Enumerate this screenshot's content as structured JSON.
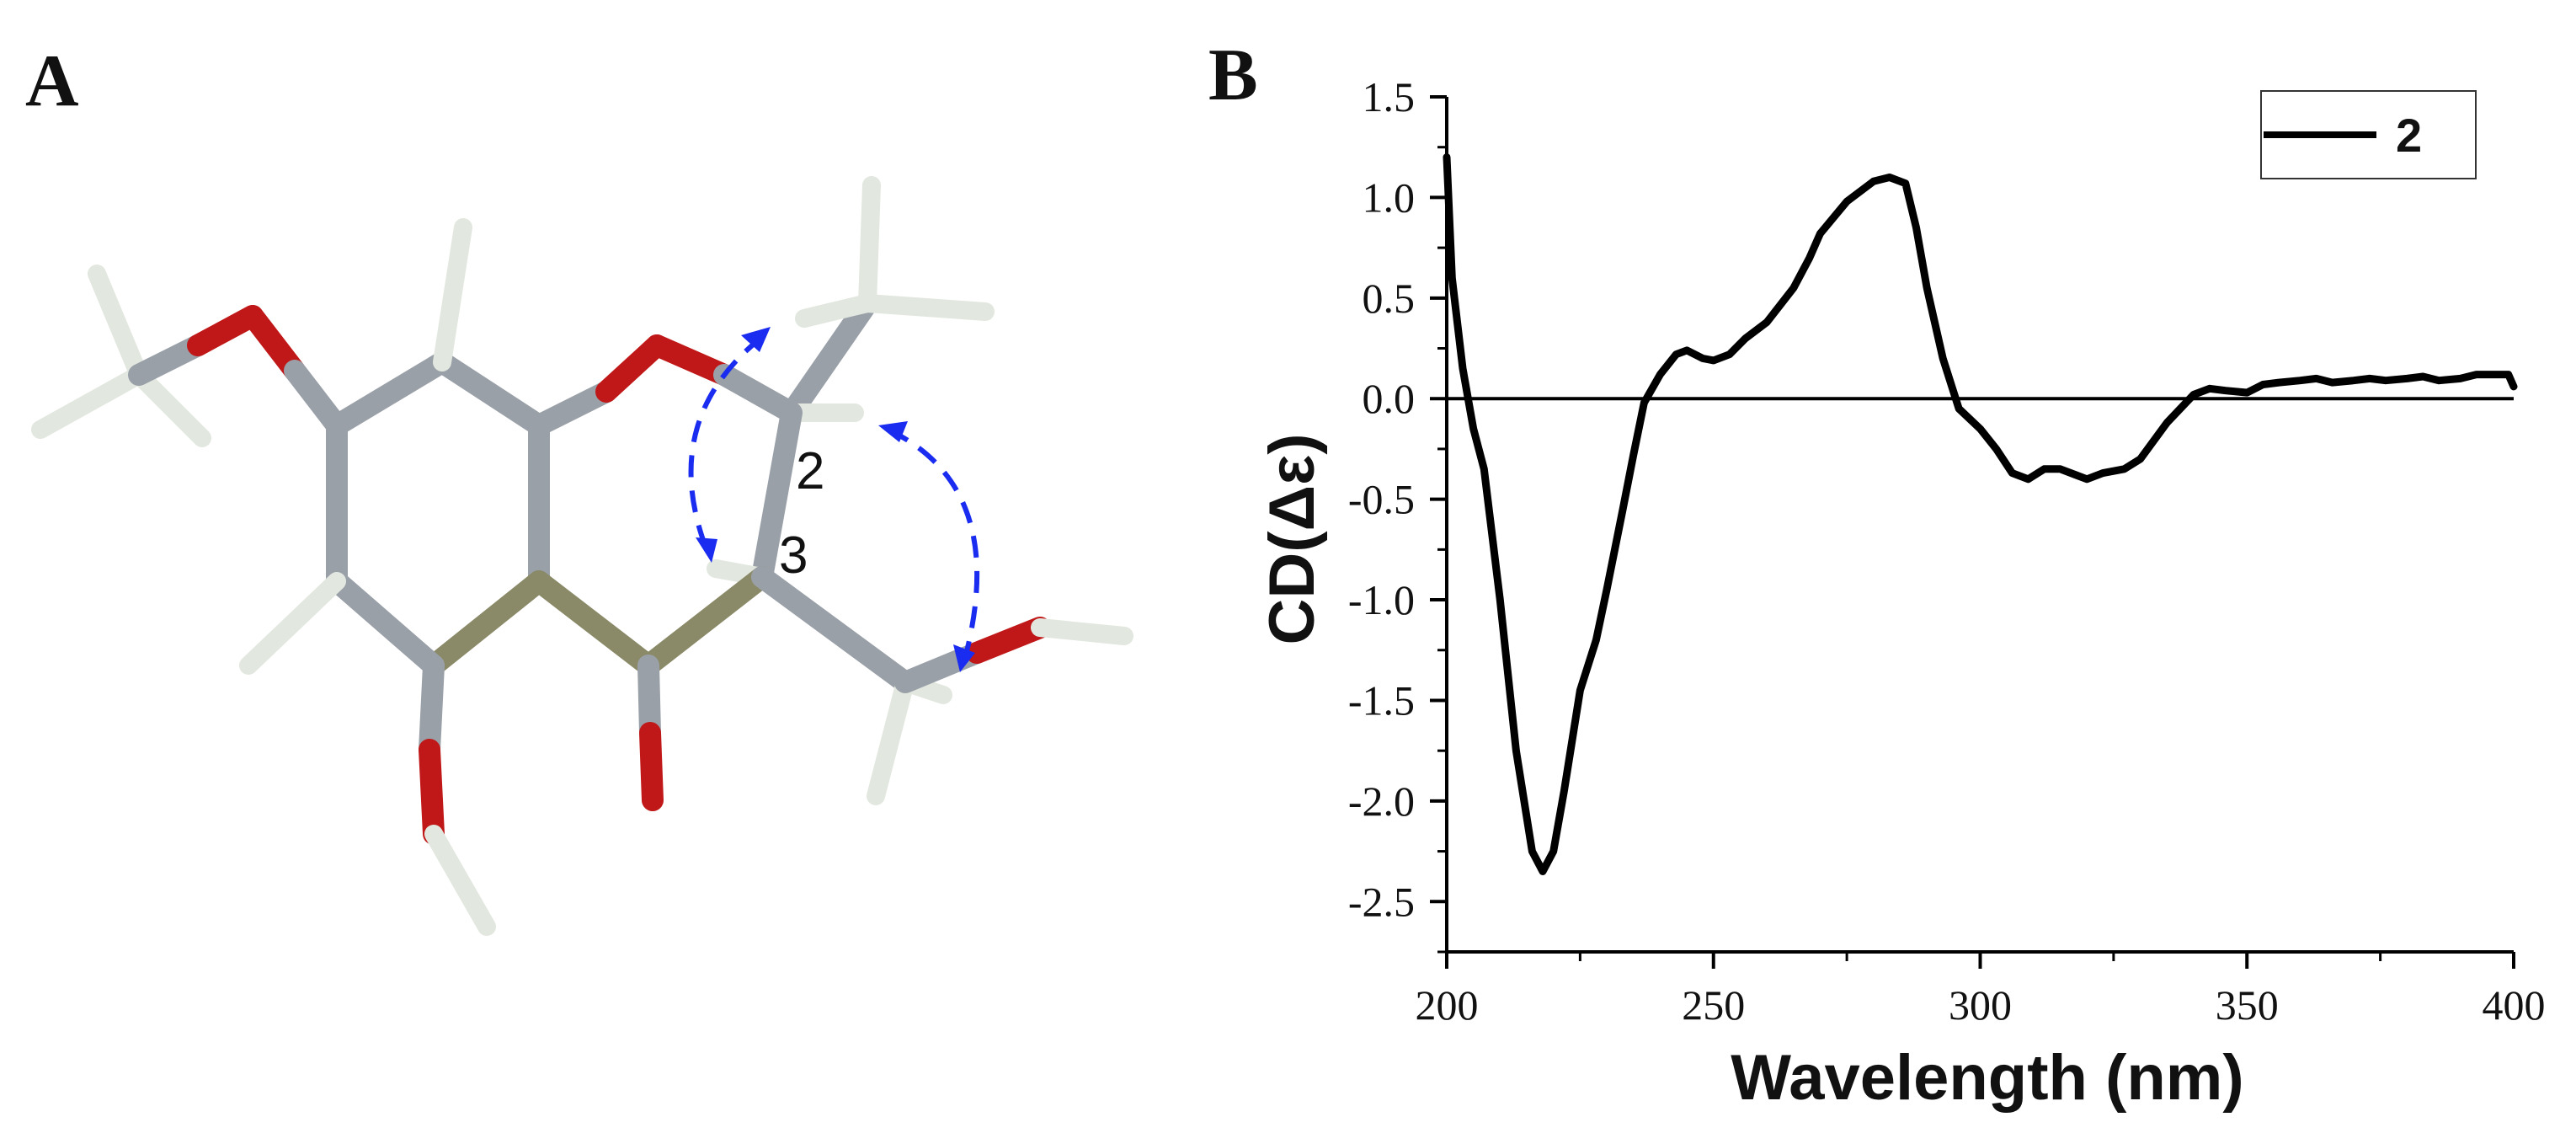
{
  "panel_a": {
    "label": "A",
    "atom_labels": [
      "2",
      "3"
    ]
  },
  "panel_b": {
    "label": "B"
  },
  "chart_data": {
    "type": "line",
    "title": "",
    "xlabel": "Wavelength (nm)",
    "ylabel": "CD(Δε)",
    "xlim": [
      200,
      400
    ],
    "ylim": [
      -2.75,
      1.5
    ],
    "xticks": [
      200,
      250,
      300,
      350,
      400
    ],
    "yticks": [
      1.5,
      1.0,
      0.5,
      0.0,
      -0.5,
      -1.0,
      -1.5,
      -2.0,
      -2.5
    ],
    "tick_labels_x": [
      "200",
      "250",
      "300",
      "350",
      "400"
    ],
    "tick_labels_y": [
      "1.5",
      "1.0",
      "0.5",
      "0.0",
      "-0.5",
      "-1.0",
      "-1.5",
      "-2.0",
      "-2.5"
    ],
    "grid": false,
    "baseline_y": 0,
    "legend": {
      "position": "top-right",
      "entries": [
        "2"
      ]
    },
    "series": [
      {
        "name": "2",
        "color": "#000000",
        "x": [
          200,
          201,
          203,
          205,
          207,
          210,
          213,
          216,
          218,
          220,
          222,
          225,
          228,
          230,
          233,
          235,
          237,
          240,
          243,
          245,
          248,
          250,
          253,
          256,
          260,
          265,
          268,
          270,
          275,
          280,
          283,
          286,
          288,
          290,
          293,
          296,
          300,
          303,
          306,
          309,
          312,
          315,
          318,
          320,
          323,
          327,
          330,
          335,
          340,
          343,
          346,
          350,
          353,
          356,
          360,
          363,
          366,
          370,
          373,
          376,
          380,
          383,
          386,
          390,
          393,
          396,
          399,
          400
        ],
        "y": [
          1.2,
          0.6,
          0.15,
          -0.15,
          -0.35,
          -1.0,
          -1.75,
          -2.25,
          -2.35,
          -2.25,
          -1.95,
          -1.45,
          -1.2,
          -0.95,
          -0.55,
          -0.28,
          -0.02,
          0.12,
          0.22,
          0.24,
          0.2,
          0.19,
          0.22,
          0.3,
          0.38,
          0.55,
          0.7,
          0.82,
          0.98,
          1.08,
          1.1,
          1.07,
          0.85,
          0.55,
          0.2,
          -0.05,
          -0.15,
          -0.25,
          -0.37,
          -0.4,
          -0.35,
          -0.35,
          -0.38,
          -0.4,
          -0.37,
          -0.35,
          -0.3,
          -0.12,
          0.02,
          0.05,
          0.04,
          0.03,
          0.07,
          0.08,
          0.09,
          0.1,
          0.08,
          0.09,
          0.1,
          0.09,
          0.1,
          0.11,
          0.09,
          0.1,
          0.12,
          0.12,
          0.12,
          0.06
        ]
      }
    ]
  }
}
